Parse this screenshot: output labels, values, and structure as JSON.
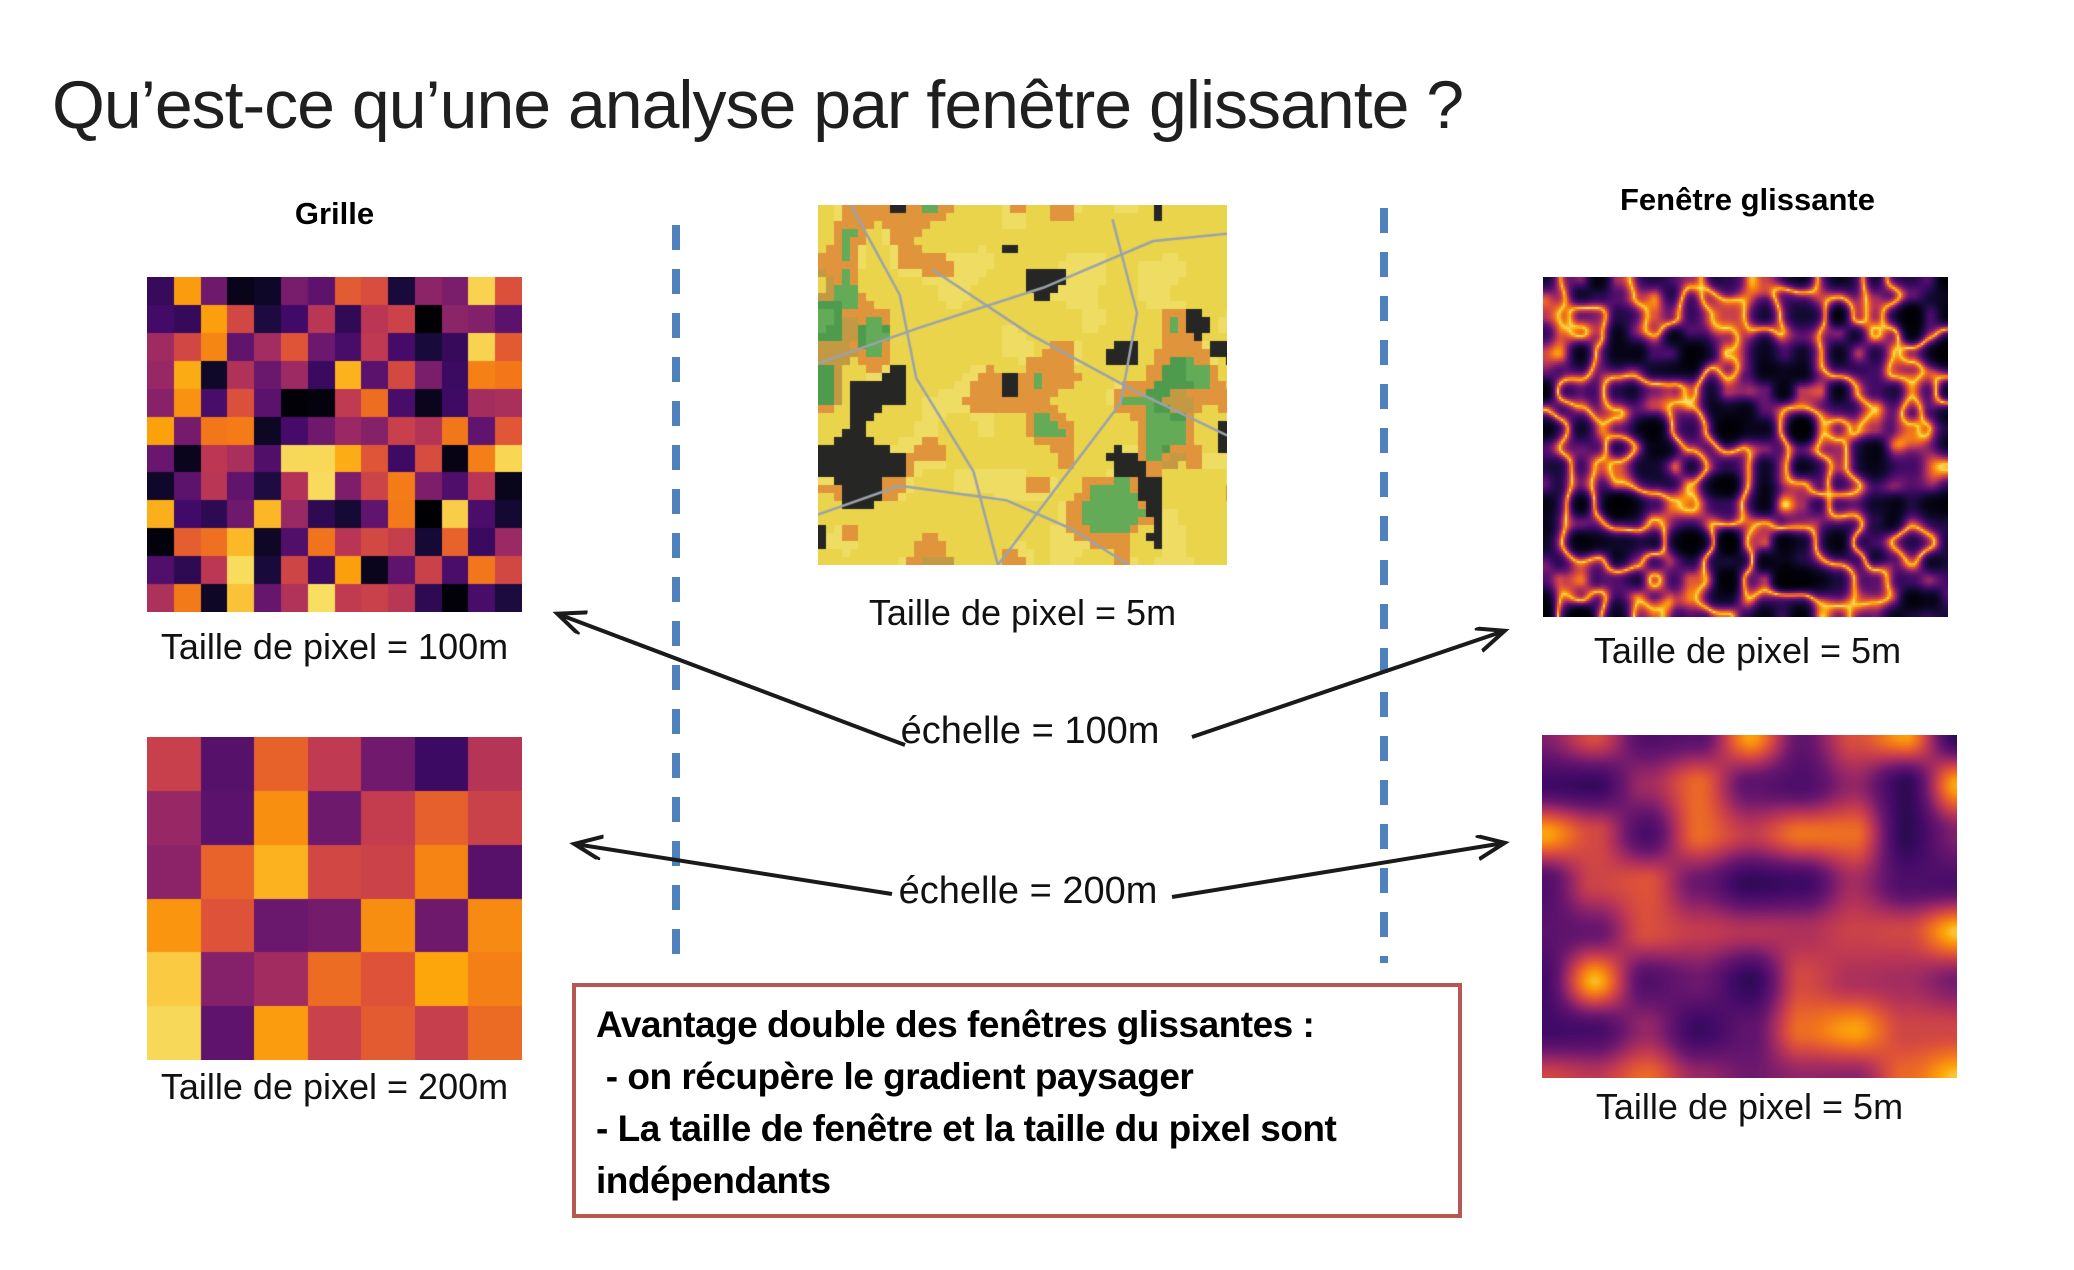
{
  "slide": {
    "title": "Qu’est-ce qu’une analyse par fenêtre glissante ?",
    "columns": {
      "left_heading": "Grille",
      "right_heading": "Fenêtre glissante"
    },
    "captions": {
      "grid_100m": "Taille de pixel = 100m",
      "grid_200m": "Taille de pixel = 200m",
      "map_5m": "Taille de pixel = 5m",
      "sliding_top_5m": "Taille de pixel = 5m",
      "sliding_bottom_5m": "Taille de pixel = 5m"
    },
    "scale_labels": {
      "scale_100m": "échelle = 100m",
      "scale_200m": "échelle = 200m"
    },
    "note_box": {
      "lines": [
        "Avantage double des fenêtres glissantes :",
        " - on récupère le gradient paysager",
        "- La taille de fenêtre et la taille du pixel sont",
        "indépendants"
      ]
    },
    "colors": {
      "dashed_line": "#4f81bd",
      "note_box_border": "#b95653",
      "arrow": "#1a1a1a",
      "text": "#000000"
    },
    "heat_palette": [
      [
        0.0,
        "#000004"
      ],
      [
        0.15,
        "#160b39"
      ],
      [
        0.3,
        "#420a68"
      ],
      [
        0.45,
        "#6a176e"
      ],
      [
        0.55,
        "#932667"
      ],
      [
        0.65,
        "#bc3754"
      ],
      [
        0.75,
        "#dd513a"
      ],
      [
        0.85,
        "#f37819"
      ],
      [
        0.93,
        "#fca50a"
      ],
      [
        1.0,
        "#f8df62"
      ]
    ],
    "figures": [
      {
        "id": "fig-grid-100m",
        "kind": "grid",
        "cols": 14,
        "rows": 12,
        "seed": 20717,
        "min": 0.0,
        "max": 1.0
      },
      {
        "id": "fig-grid-200m",
        "kind": "grid",
        "cols": 7,
        "rows": 6,
        "seed": 4211,
        "min": 0.3,
        "max": 1.0
      },
      {
        "id": "fig-map-5m",
        "kind": "landcover",
        "seed": 905,
        "colors": {
          "yellow": "#e9d44c",
          "yellow2": "#eedd62",
          "orange": "#e0953c",
          "tan": "#c39a43",
          "green": "#4f9b4d",
          "green2": "#63ab57",
          "dark": "#262624",
          "road": "#9aa3ab"
        },
        "roads": [
          [
            [
              0.08,
              0.0
            ],
            [
              0.2,
              0.25
            ],
            [
              0.24,
              0.48
            ],
            [
              0.38,
              0.74
            ],
            [
              0.44,
              1.0
            ]
          ],
          [
            [
              0.0,
              0.44
            ],
            [
              0.25,
              0.34
            ],
            [
              0.55,
              0.23
            ],
            [
              0.82,
              0.1
            ],
            [
              1.0,
              0.08
            ]
          ],
          [
            [
              0.28,
              0.18
            ],
            [
              0.52,
              0.36
            ],
            [
              0.78,
              0.52
            ],
            [
              1.0,
              0.64
            ]
          ],
          [
            [
              0.44,
              1.0
            ],
            [
              0.6,
              0.76
            ],
            [
              0.74,
              0.55
            ],
            [
              0.78,
              0.3
            ],
            [
              0.72,
              0.04
            ]
          ],
          [
            [
              0.0,
              0.86
            ],
            [
              0.2,
              0.78
            ],
            [
              0.46,
              0.82
            ],
            [
              0.62,
              0.9
            ],
            [
              0.76,
              1.0
            ]
          ]
        ]
      },
      {
        "id": "fig-slide-100m",
        "kind": "trails",
        "cols": 11,
        "rows": 9,
        "seed": 7741
      },
      {
        "id": "fig-slide-200m",
        "kind": "smooth",
        "cols": 8,
        "rows": 7,
        "seed": 3390,
        "min": 0.22,
        "max": 1.0
      }
    ]
  }
}
